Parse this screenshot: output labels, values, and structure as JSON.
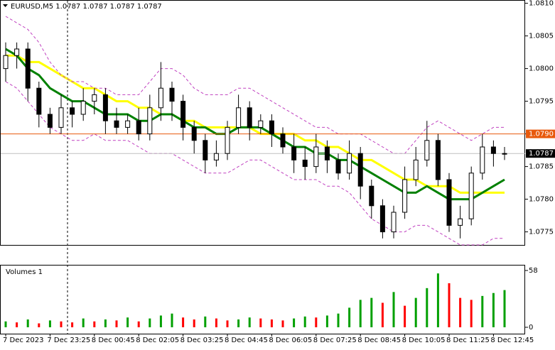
{
  "chart_data": [
    {
      "type": "candlestick",
      "title": "EURUSD,M5  1.0787 1.0787 1.0787 1.0787",
      "open": [
        1.08,
        1.0802,
        1.0803,
        1.0797,
        1.0793,
        1.0791,
        1.0794,
        1.0793,
        1.0795,
        1.0796,
        1.0792,
        1.0791,
        1.0792,
        1.079,
        1.0794,
        1.0797,
        1.0795,
        1.0791,
        1.0789,
        1.0786,
        1.0787,
        1.0791,
        1.0794,
        1.0791,
        1.0792,
        1.079,
        1.0788,
        1.0786,
        1.0785,
        1.0788,
        1.0786,
        1.0784,
        1.0787,
        1.0782,
        1.0779,
        1.0775,
        1.0778,
        1.0783,
        1.0786,
        1.0789,
        1.0783,
        1.0776,
        1.0777,
        1.0784,
        1.0788,
        1.0787
      ],
      "high": [
        1.0804,
        1.0804,
        1.0804,
        1.0798,
        1.0794,
        1.0796,
        1.0795,
        1.0797,
        1.0797,
        1.0797,
        1.0794,
        1.0793,
        1.0794,
        1.0796,
        1.0801,
        1.0798,
        1.0796,
        1.0792,
        1.079,
        1.0789,
        1.0792,
        1.0796,
        1.0795,
        1.0793,
        1.0793,
        1.0791,
        1.079,
        1.0788,
        1.079,
        1.0789,
        1.0787,
        1.0789,
        1.0788,
        1.0783,
        1.078,
        1.0779,
        1.0785,
        1.0788,
        1.0792,
        1.079,
        1.0784,
        1.0779,
        1.0785,
        1.079,
        1.0789,
        1.0788
      ],
      "low": [
        1.0798,
        1.08,
        1.0795,
        1.0791,
        1.079,
        1.079,
        1.0791,
        1.0792,
        1.0793,
        1.079,
        1.079,
        1.079,
        1.0789,
        1.0789,
        1.0792,
        1.0792,
        1.0789,
        1.0787,
        1.0784,
        1.0785,
        1.0786,
        1.079,
        1.0789,
        1.079,
        1.0788,
        1.0787,
        1.0784,
        1.0783,
        1.0784,
        1.0784,
        1.0783,
        1.0783,
        1.078,
        1.0777,
        1.0774,
        1.0774,
        1.0777,
        1.0782,
        1.0785,
        1.0782,
        1.0775,
        1.0774,
        1.0776,
        1.0783,
        1.0785,
        1.0786
      ],
      "close": [
        1.0802,
        1.0803,
        1.0797,
        1.0793,
        1.0791,
        1.0794,
        1.0793,
        1.0795,
        1.0796,
        1.0792,
        1.0791,
        1.0792,
        1.079,
        1.0794,
        1.0797,
        1.0795,
        1.0791,
        1.0789,
        1.0786,
        1.0787,
        1.0791,
        1.0794,
        1.0791,
        1.0792,
        1.079,
        1.0788,
        1.0786,
        1.0785,
        1.0788,
        1.0786,
        1.0784,
        1.0787,
        1.0782,
        1.0779,
        1.0775,
        1.0778,
        1.0783,
        1.0786,
        1.0789,
        1.0783,
        1.0776,
        1.0777,
        1.0784,
        1.0788,
        1.0787,
        1.0787
      ],
      "color": "#000000",
      "series": [
        {
          "color": "#ffff00",
          "style": "solid",
          "values": [
            1.0802,
            1.0802,
            1.0801,
            1.0801,
            1.08,
            1.0799,
            1.0798,
            1.0797,
            1.0797,
            1.0796,
            1.0795,
            1.0795,
            1.0794,
            1.0794,
            1.0793,
            1.0793,
            1.0792,
            1.0792,
            1.0791,
            1.0791,
            1.0791,
            1.0791,
            1.0791,
            1.079,
            1.079,
            1.079,
            1.079,
            1.0789,
            1.0789,
            1.0788,
            1.0788,
            1.0787,
            1.0786,
            1.0786,
            1.0785,
            1.0784,
            1.0783,
            1.0783,
            1.0782,
            1.0782,
            1.0782,
            1.0781,
            1.0781,
            1.0781,
            1.0781,
            1.0781
          ]
        },
        {
          "color": "#008000",
          "style": "solid",
          "values": [
            1.0803,
            1.0802,
            1.08,
            1.0799,
            1.0797,
            1.0796,
            1.0795,
            1.0795,
            1.0794,
            1.0793,
            1.0793,
            1.0793,
            1.0792,
            1.0792,
            1.0793,
            1.0793,
            1.0792,
            1.0791,
            1.0791,
            1.079,
            1.079,
            1.0791,
            1.0791,
            1.0791,
            1.079,
            1.0789,
            1.0788,
            1.0788,
            1.0787,
            1.0787,
            1.0786,
            1.0786,
            1.0785,
            1.0784,
            1.0783,
            1.0782,
            1.0781,
            1.0781,
            1.0782,
            1.0781,
            1.078,
            1.078,
            1.078,
            1.0781,
            1.0782,
            1.0783
          ]
        },
        {
          "color": "#c040c0",
          "style": "dashed",
          "values": [
            1.0808,
            1.0807,
            1.0806,
            1.0804,
            1.0801,
            1.0799,
            1.0798,
            1.0798,
            1.0797,
            1.0797,
            1.0796,
            1.0796,
            1.0796,
            1.0798,
            1.08,
            1.08,
            1.0799,
            1.0797,
            1.0796,
            1.0796,
            1.0796,
            1.0797,
            1.0797,
            1.0796,
            1.0795,
            1.0794,
            1.0793,
            1.0792,
            1.0791,
            1.0791,
            1.079,
            1.079,
            1.079,
            1.0789,
            1.0788,
            1.0787,
            1.0787,
            1.0789,
            1.0791,
            1.0792,
            1.0791,
            1.079,
            1.0789,
            1.079,
            1.0791,
            1.0791
          ]
        },
        {
          "color": "#c040c0",
          "style": "dashed",
          "values": [
            1.0798,
            1.0797,
            1.0795,
            1.0793,
            1.0791,
            1.079,
            1.0789,
            1.0789,
            1.079,
            1.0789,
            1.0789,
            1.0789,
            1.0788,
            1.0787,
            1.0787,
            1.0787,
            1.0786,
            1.0785,
            1.0784,
            1.0784,
            1.0784,
            1.0785,
            1.0786,
            1.0786,
            1.0785,
            1.0784,
            1.0783,
            1.0783,
            1.0783,
            1.0782,
            1.0782,
            1.0781,
            1.0779,
            1.0777,
            1.0776,
            1.0775,
            1.0775,
            1.0776,
            1.0776,
            1.0775,
            1.0774,
            1.0773,
            1.0773,
            1.0773,
            1.0774,
            1.0774
          ]
        }
      ],
      "ylim": [
        1.0773,
        1.08105
      ],
      "yticks": [
        1.0775,
        {
          "value": 1.078,
          "label": "1.0780"
        },
        1.0785,
        {
          "value": 1.079,
          "label": "1.0790"
        },
        1.0795,
        {
          "value": 1.08,
          "label": "1.0800"
        },
        1.0805,
        {
          "value": 1.081,
          "label": "1.0810"
        }
      ],
      "hline": {
        "value": 1.079,
        "label": "1.0790",
        "color": "#e8590c"
      },
      "last_price": {
        "value": 1.0787,
        "label": "1.0787"
      }
    },
    {
      "type": "bar",
      "title": "Volumes 1",
      "categories": [
        "7 Dec 2023",
        null,
        null,
        null,
        "7 Dec 23:25",
        null,
        null,
        null,
        "8 Dec 00:45",
        null,
        null,
        null,
        "8 Dec 02:05",
        null,
        null,
        null,
        "8 Dec 03:25",
        null,
        null,
        null,
        "8 Dec 04:45",
        null,
        null,
        null,
        "8 Dec 06:05",
        null,
        null,
        null,
        "8 Dec 07:25",
        null,
        null,
        null,
        "8 Dec 08:45",
        null,
        null,
        null,
        "8 Dec 10:05",
        null,
        null,
        null,
        "8 Dec 11:25",
        null,
        null,
        null,
        "8 Dec 12:45",
        null
      ],
      "values": [
        6,
        5,
        8,
        4,
        7,
        6,
        5,
        9,
        6,
        8,
        7,
        10,
        6,
        9,
        12,
        14,
        10,
        8,
        11,
        9,
        7,
        8,
        10,
        9,
        8,
        7,
        9,
        11,
        10,
        12,
        14,
        20,
        28,
        30,
        25,
        36,
        22,
        30,
        40,
        55,
        45,
        30,
        28,
        32,
        35,
        38
      ],
      "up_color": "#00a000",
      "down_color": "#ff0000",
      "ylim": [
        0,
        58
      ],
      "yticks": [
        0,
        58
      ]
    }
  ]
}
